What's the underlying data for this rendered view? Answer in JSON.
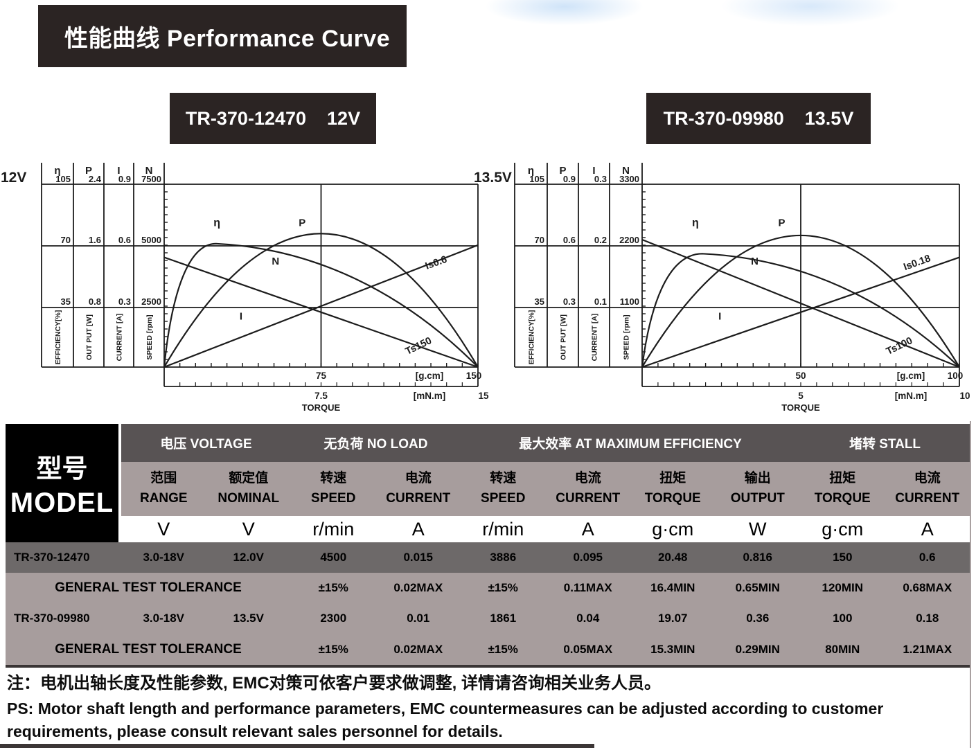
{
  "page": {
    "title": "性能曲线 Performance Curve",
    "note_cn": "注：电机出轴长度及性能参数, EMC对策可依客户要求做调整, 详情请咨询相关业务人员。",
    "note_en1": "PS: Motor shaft length and performance parameters, EMC countermeasures can be adjusted according to customer",
    "note_en2": "requirements, please consult relevant sales personnel for details."
  },
  "colors": {
    "line": "#1c1c1c",
    "title_bg": "#2b2423",
    "table_group_bg": "#585354",
    "table_sub_bg": "#a79d9d",
    "row_dark_bg": "#6d6969",
    "row_light_bg": "#a79d9d",
    "model_block_bg": "#000000"
  },
  "charts": [
    {
      "badge_model": "TR-370-12470",
      "badge_voltage": "12V",
      "voltage_label": "12V",
      "scale_columns": [
        {
          "symbol": "η",
          "ticks": [
            "105",
            "70",
            "35"
          ],
          "unit_label": "EFFICIENCY[%]"
        },
        {
          "symbol": "P",
          "ticks": [
            "2.4",
            "1.6",
            "0.8"
          ],
          "unit_label": "OUT PUT [W]"
        },
        {
          "symbol": "I",
          "ticks": [
            "0.9",
            "0.6",
            "0.3"
          ],
          "unit_label": "CURRENT [A]"
        },
        {
          "symbol": "N",
          "ticks": [
            "7500",
            "5000",
            "2500"
          ],
          "unit_label": "SPEED [rpm]"
        }
      ],
      "x_axis": {
        "mid": "75",
        "unit": "[g.cm]",
        "max": "150"
      },
      "x_axis2": {
        "mid": "7.5",
        "unit": "[mN.m]",
        "max": "15"
      },
      "x_title": "TORQUE",
      "curve_labels": {
        "eta": "η",
        "p": "P",
        "n": "N",
        "i": "I",
        "is": "Is0.6",
        "ts": "Ts150"
      }
    },
    {
      "badge_model": "TR-370-09980",
      "badge_voltage": "13.5V",
      "voltage_label": "13.5V",
      "scale_columns": [
        {
          "symbol": "η",
          "ticks": [
            "105",
            "70",
            "35"
          ],
          "unit_label": "EFFICIENCY[%]"
        },
        {
          "symbol": "P",
          "ticks": [
            "0.9",
            "0.6",
            "0.3"
          ],
          "unit_label": "OUT PUT [W]"
        },
        {
          "symbol": "I",
          "ticks": [
            "0.3",
            "0.2",
            "0.1"
          ],
          "unit_label": "CURRENT [A]"
        },
        {
          "symbol": "N",
          "ticks": [
            "3300",
            "2200",
            "1100"
          ],
          "unit_label": "SPEED [rpm]"
        }
      ],
      "x_axis": {
        "mid": "50",
        "unit": "[g.cm]",
        "max": "100"
      },
      "x_axis2": {
        "mid": "5",
        "unit": "[mN.m]",
        "max": "10"
      },
      "x_title": "TORQUE",
      "curve_labels": {
        "eta": "η",
        "p": "P",
        "n": "N",
        "i": "I",
        "is": "Is0.18",
        "ts": "Ts100"
      }
    }
  ],
  "chart_data": [
    {
      "type": "line",
      "title": "TR-370-12470 12V",
      "xlabel": "TORQUE",
      "x_units": [
        "g.cm",
        "mN.m"
      ],
      "x_range_gcm": [
        0,
        150
      ],
      "x_range_mnm": [
        0,
        15
      ],
      "y_axes": [
        {
          "symbol": "η",
          "name": "EFFICIENCY[%]",
          "range": [
            0,
            105
          ],
          "ticks": [
            35,
            70,
            105
          ]
        },
        {
          "symbol": "P",
          "name": "OUT PUT [W]",
          "range": [
            0,
            2.4
          ],
          "ticks": [
            0.8,
            1.6,
            2.4
          ]
        },
        {
          "symbol": "I",
          "name": "CURRENT [A]",
          "range": [
            0,
            0.9
          ],
          "ticks": [
            0.3,
            0.6,
            0.9
          ]
        },
        {
          "symbol": "N",
          "name": "SPEED [rpm]",
          "range": [
            0,
            7500
          ],
          "ticks": [
            2500,
            5000,
            7500
          ]
        }
      ],
      "series": [
        {
          "name": "N speed (rpm)",
          "shape": "linear",
          "points": [
            [
              0,
              4500
            ],
            [
              150,
              0
            ]
          ]
        },
        {
          "name": "I current (A)",
          "shape": "linear",
          "points": [
            [
              0,
              0
            ],
            [
              150,
              0.6
            ]
          ]
        },
        {
          "name": "P output (W)",
          "shape": "parabola",
          "points": [
            [
              0,
              0
            ],
            [
              75,
              1.75
            ],
            [
              150,
              0
            ]
          ]
        },
        {
          "name": "η efficiency (%)",
          "shape": "skewed-peak",
          "points": [
            [
              0,
              0
            ],
            [
              25,
              71
            ],
            [
              150,
              0
            ]
          ]
        }
      ],
      "annotations": [
        "Is0.6",
        "Ts150"
      ],
      "curve_geometry_fractions": {
        "n0": 0.6,
        "i1": 0.667,
        "pp": 0.73,
        "ex": 0.165,
        "ey": 0.675
      }
    },
    {
      "type": "line",
      "title": "TR-370-09980 13.5V",
      "xlabel": "TORQUE",
      "x_units": [
        "g.cm",
        "mN.m"
      ],
      "x_range_gcm": [
        0,
        100
      ],
      "x_range_mnm": [
        0,
        10
      ],
      "y_axes": [
        {
          "symbol": "η",
          "name": "EFFICIENCY[%]",
          "range": [
            0,
            105
          ],
          "ticks": [
            35,
            70,
            105
          ]
        },
        {
          "symbol": "P",
          "name": "OUT PUT [W]",
          "range": [
            0,
            0.9
          ],
          "ticks": [
            0.3,
            0.6,
            0.9
          ]
        },
        {
          "symbol": "I",
          "name": "CURRENT [A]",
          "range": [
            0,
            0.3
          ],
          "ticks": [
            0.1,
            0.2,
            0.3
          ]
        },
        {
          "symbol": "N",
          "name": "SPEED [rpm]",
          "range": [
            0,
            3300
          ],
          "ticks": [
            1100,
            2200,
            3300
          ]
        }
      ],
      "series": [
        {
          "name": "N speed (rpm)",
          "shape": "linear",
          "points": [
            [
              0,
              2300
            ],
            [
              100,
              0
            ]
          ]
        },
        {
          "name": "I current (A)",
          "shape": "linear",
          "points": [
            [
              0,
              0
            ],
            [
              100,
              0.18
            ]
          ]
        },
        {
          "name": "P output (W)",
          "shape": "parabola",
          "points": [
            [
              0,
              0
            ],
            [
              50,
              0.65
            ],
            [
              100,
              0
            ]
          ]
        },
        {
          "name": "η efficiency (%)",
          "shape": "skewed-peak",
          "points": [
            [
              0,
              0
            ],
            [
              19,
              65
            ],
            [
              100,
              0
            ]
          ]
        }
      ],
      "annotations": [
        "Is0.18",
        "Ts100"
      ],
      "curve_geometry_fractions": {
        "n0": 0.697,
        "i1": 0.6,
        "pp": 0.72,
        "ex": 0.19,
        "ey": 0.62
      }
    }
  ],
  "table": {
    "model_header": {
      "cn": "型号",
      "en": "MODEL"
    },
    "groups": [
      {
        "label": "电压 VOLTAGE",
        "span": 2
      },
      {
        "label": "无负荷 NO LOAD",
        "span": 2
      },
      {
        "label": "最大效率 AT MAXIMUM EFFICIENCY",
        "span": 4
      },
      {
        "label": "堵转 STALL",
        "span": 2
      }
    ],
    "columns": [
      {
        "cn": "范围",
        "en": "RANGE",
        "unit": "V"
      },
      {
        "cn": "额定值",
        "en": "NOMINAL",
        "unit": "V"
      },
      {
        "cn": "转速",
        "en": "SPEED",
        "unit": "r/min"
      },
      {
        "cn": "电流",
        "en": "CURRENT",
        "unit": "A"
      },
      {
        "cn": "转速",
        "en": "SPEED",
        "unit": "r/min"
      },
      {
        "cn": "电流",
        "en": "CURRENT",
        "unit": "A"
      },
      {
        "cn": "扭矩",
        "en": "TORQUE",
        "unit": "g·cm"
      },
      {
        "cn": "输出",
        "en": "OUTPUT",
        "unit": "W"
      },
      {
        "cn": "扭矩",
        "en": "TORQUE",
        "unit": "g·cm"
      },
      {
        "cn": "电流",
        "en": "CURRENT",
        "unit": "A"
      }
    ],
    "rows": [
      {
        "variant": "dark",
        "model": "TR-370-12470",
        "values": [
          "3.0-18V",
          "12.0V",
          "4500",
          "0.015",
          "3886",
          "0.095",
          "20.48",
          "0.816",
          "150",
          "0.6"
        ]
      },
      {
        "variant": "tolerance",
        "model": "GENERAL TEST TOLERANCE",
        "values": [
          "±15%",
          "0.02MAX",
          "±15%",
          "0.11MAX",
          "16.4MIN",
          "0.65MIN",
          "120MIN",
          "0.68MAX"
        ]
      },
      {
        "variant": "light",
        "model": "TR-370-09980",
        "values": [
          "3.0-18V",
          "13.5V",
          "2300",
          "0.01",
          "1861",
          "0.04",
          "19.07",
          "0.36",
          "100",
          "0.18"
        ]
      },
      {
        "variant": "tolerance",
        "model": "GENERAL TEST TOLERANCE",
        "values": [
          "±15%",
          "0.02MAX",
          "±15%",
          "0.05MAX",
          "15.3MIN",
          "0.29MIN",
          "80MIN",
          "1.21MAX"
        ]
      }
    ]
  }
}
